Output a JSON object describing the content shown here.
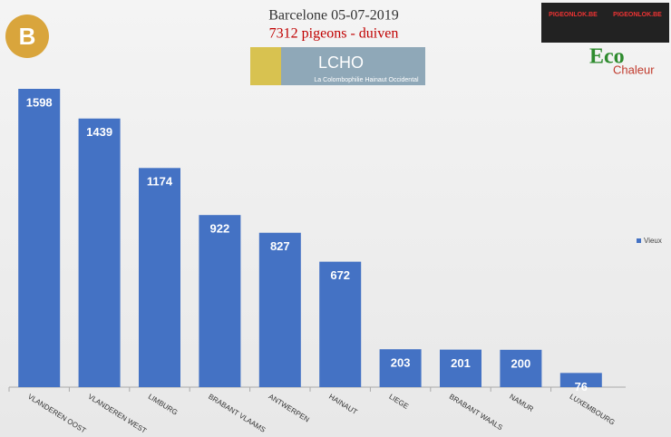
{
  "chart_data": {
    "type": "bar",
    "title": "Barcelone 05-07-2019",
    "subtitle": "7312 pigeons - duiven",
    "categories": [
      "VLANDEREN OOST",
      "VLANDEREN WEST",
      "LIMBURG",
      "BRABANT VLAAMS",
      "ANTWERPEN",
      "HAINAUT",
      "LIEGE",
      "BRABANT WAALS",
      "NAMUR",
      "LUXEMBOURG"
    ],
    "series": [
      {
        "name": "Vieux",
        "color": "#4472c4",
        "values": [
          1598,
          1439,
          1174,
          922,
          827,
          672,
          203,
          201,
          200,
          76
        ]
      }
    ],
    "legend": "right"
  },
  "logos": {
    "lcho": "LCHO",
    "lcho_sub": "La Colombophilie Hainaut Occidental",
    "eco": "Eco",
    "chaleur": "Chaleur",
    "pigeonlok": "PIGEONLOK.BE",
    "b": "B"
  }
}
